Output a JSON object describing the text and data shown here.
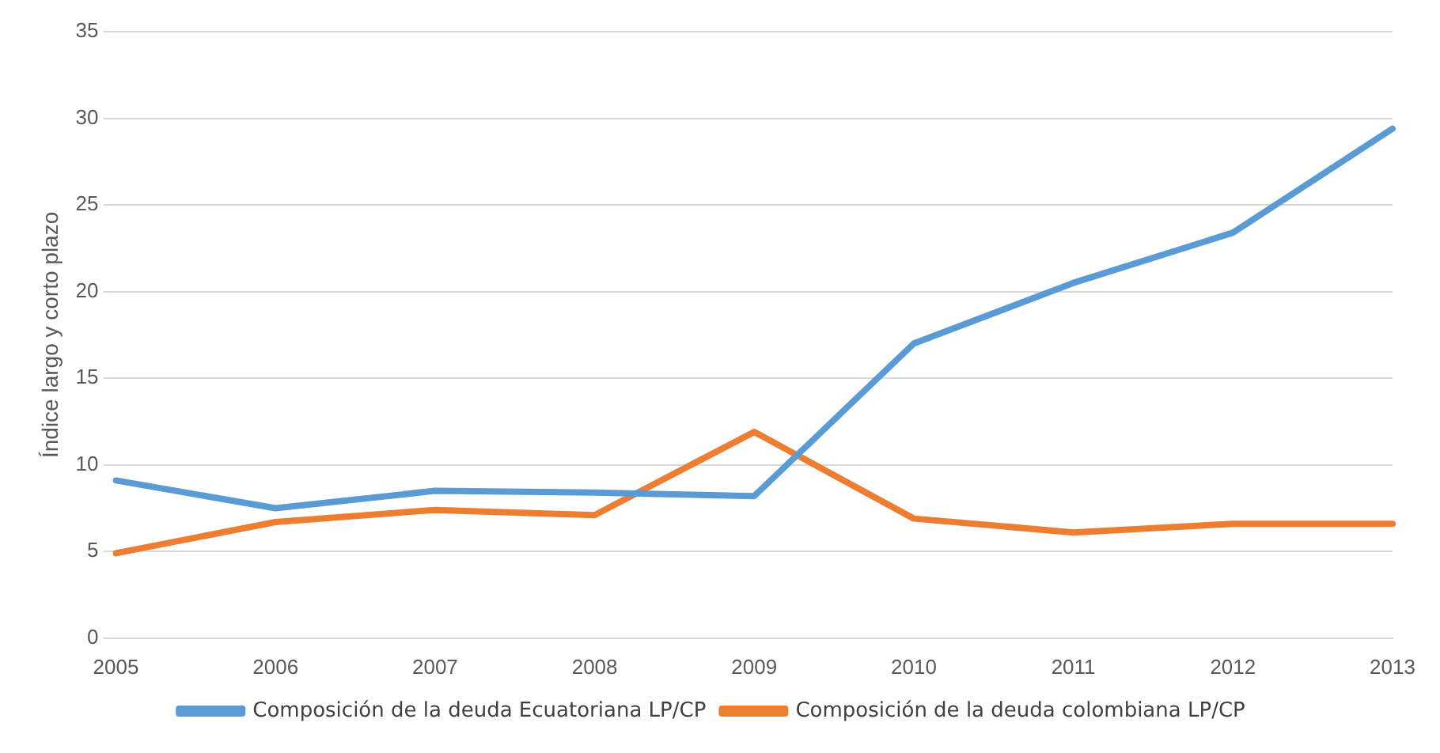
{
  "chart_data": {
    "type": "line",
    "ylabel": "Índice largo y corto plazo",
    "categories": [
      "2005",
      "2006",
      "2007",
      "2008",
      "2009",
      "2010",
      "2011",
      "2012",
      "2013"
    ],
    "series": [
      {
        "name": "Composición de la deuda Ecuatoriana LP/CP",
        "color": "#5b9bd5",
        "values": [
          9.1,
          7.5,
          8.5,
          8.4,
          8.2,
          17,
          20.5,
          23.4,
          29.4
        ]
      },
      {
        "name": "Composición de la deuda colombiana LP/CP",
        "color": "#ed7d31",
        "values": [
          4.9,
          6.7,
          7.4,
          7.1,
          11.9,
          6.9,
          6.1,
          6.6,
          6.6
        ]
      }
    ],
    "ylim": [
      0,
      35
    ],
    "yticks": [
      0,
      5,
      10,
      15,
      20,
      25,
      30,
      35
    ],
    "grid": "y",
    "legend": "bottom",
    "marker": "none",
    "line_style": "solid"
  }
}
